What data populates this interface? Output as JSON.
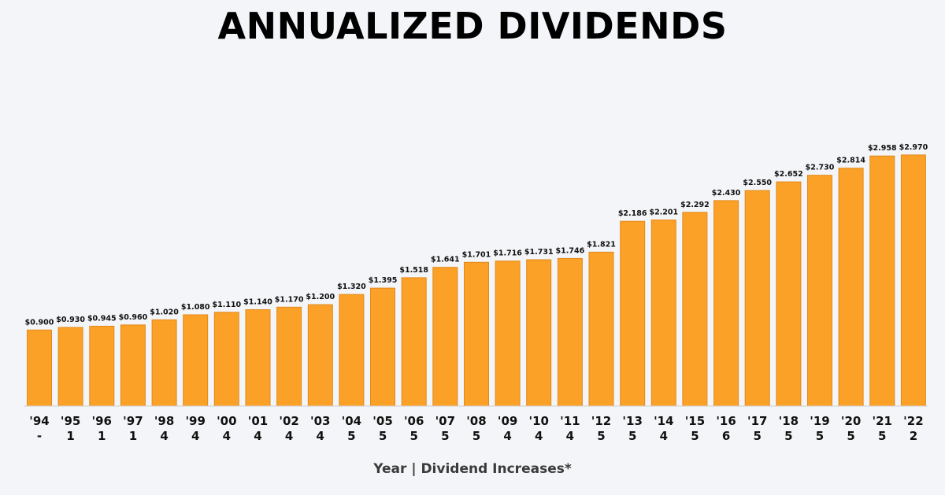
{
  "chart_data": {
    "type": "bar",
    "title": "ANNUALIZED DIVIDENDS",
    "xlabel": "Year | Dividend Increases*",
    "ylabel": "",
    "categories": [
      "'94",
      "'95",
      "'96",
      "'97",
      "'98",
      "'99",
      "'00",
      "'01",
      "'02",
      "'03",
      "'04",
      "'05",
      "'06",
      "'07",
      "'08",
      "'09",
      "'10",
      "'11",
      "'12",
      "'13",
      "'14",
      "'15",
      "'16",
      "'17",
      "'18",
      "'19",
      "'20",
      "'21",
      "'22"
    ],
    "increases": [
      "-",
      "1",
      "1",
      "1",
      "4",
      "4",
      "4",
      "4",
      "4",
      "4",
      "5",
      "5",
      "5",
      "5",
      "5",
      "4",
      "4",
      "4",
      "5",
      "5",
      "4",
      "5",
      "6",
      "5",
      "5",
      "5",
      "5",
      "5",
      "2"
    ],
    "values": [
      0.9,
      0.93,
      0.945,
      0.96,
      1.02,
      1.08,
      1.11,
      1.14,
      1.17,
      1.2,
      1.32,
      1.395,
      1.518,
      1.641,
      1.701,
      1.716,
      1.731,
      1.746,
      1.821,
      2.186,
      2.201,
      2.292,
      2.43,
      2.55,
      2.652,
      2.73,
      2.814,
      2.958,
      2.97
    ],
    "value_labels": [
      "$0.900",
      "$0.930",
      "$0.945",
      "$0.960",
      "$1.020",
      "$1.080",
      "$1.110",
      "$1.140",
      "$1.170",
      "$1.200",
      "$1.320",
      "$1.395",
      "$1.518",
      "$1.641",
      "$1.701",
      "$1.716",
      "$1.731",
      "$1.746",
      "$1.821",
      "$2.186",
      "$2.201",
      "$2.292",
      "$2.430",
      "$2.550",
      "$2.652",
      "$2.730",
      "$2.814",
      "$2.958",
      "$2.970"
    ],
    "ylim": [
      0,
      3.5
    ],
    "grid": false,
    "colors": {
      "bar": "#fba128",
      "bar_edge": "#e3891a",
      "background": "#f3f5f8"
    }
  }
}
